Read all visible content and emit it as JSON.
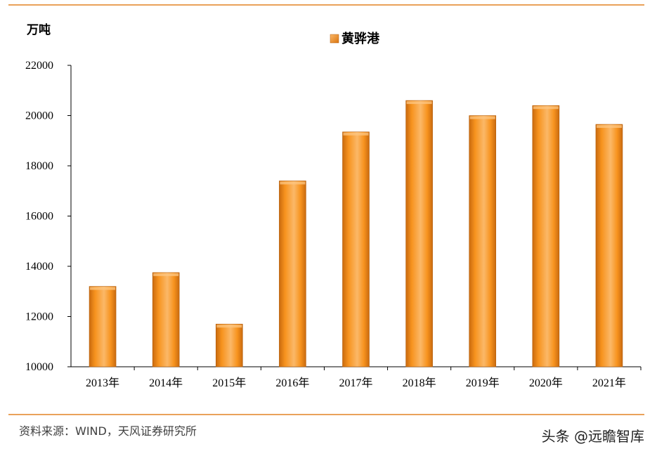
{
  "chart_data": {
    "type": "bar",
    "title": "",
    "ylabel": "万吨",
    "xlabel": "",
    "categories": [
      "2013年",
      "2014年",
      "2015年",
      "2016年",
      "2017年",
      "2018年",
      "2019年",
      "2020年",
      "2021年"
    ],
    "series": [
      {
        "name": "黄骅港",
        "values": [
          13200,
          13750,
          11700,
          17400,
          19350,
          20600,
          20000,
          20400,
          19650
        ]
      }
    ],
    "ylim": [
      10000,
      22000
    ],
    "yticks": [
      "10000",
      "12000",
      "14000",
      "16000",
      "18000",
      "20000",
      "22000"
    ],
    "grid": false,
    "legend": "top-center",
    "colors": {
      "bar_light": "#fbb868",
      "bar_main": "#f7931e",
      "bar_dark": "#c96a0f",
      "rule": "#e9a25a"
    }
  },
  "footer": {
    "source": "资料来源：WIND，天风证券研究所",
    "watermark": "头条 @远瞻智库"
  }
}
